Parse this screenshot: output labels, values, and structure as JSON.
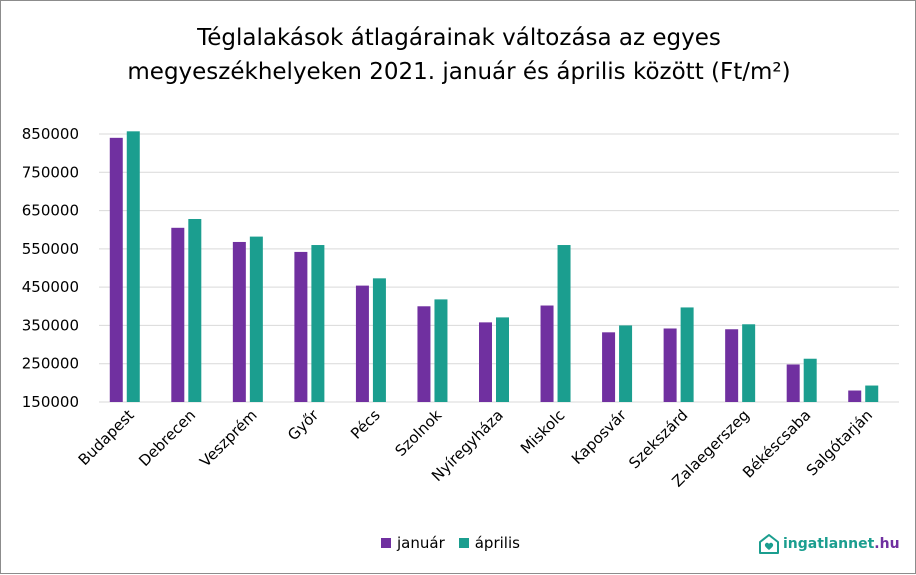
{
  "chart_data": {
    "type": "bar",
    "title_line1": "Téglalakások átlagárainak változása az egyes",
    "title_line2": "megyeszékhelyeken  2021. január és április között (Ft/m²)",
    "categories": [
      "Budapest",
      "Debrecen",
      "Veszprém",
      "Győr",
      "Pécs",
      "Szolnok",
      "Nyíregyháza",
      "Miskolc",
      "Kaposvár",
      "Szekszárd",
      "Zalaegerszeg",
      "Békéscsaba",
      "Salgótarján"
    ],
    "series": [
      {
        "name": "január",
        "color": "#7030a0",
        "values": [
          840000,
          605000,
          568000,
          542000,
          454000,
          400000,
          358000,
          402000,
          332000,
          342000,
          340000,
          248000,
          180000
        ]
      },
      {
        "name": "április",
        "color": "#1b9e8f",
        "values": [
          857000,
          628000,
          582000,
          560000,
          473000,
          418000,
          371000,
          560000,
          350000,
          397000,
          353000,
          263000,
          193000
        ]
      }
    ],
    "yticks": [
      "850000",
      "750000",
      "650000",
      "550000",
      "450000",
      "350000",
      "250000",
      "150000"
    ],
    "ylim": [
      150000,
      850000
    ],
    "grid": true,
    "legend_position": "bottom"
  },
  "logo": {
    "text": "ingatlannet.hu",
    "color_main": "#1b9e8f",
    "color_accent": "#7030a0"
  }
}
